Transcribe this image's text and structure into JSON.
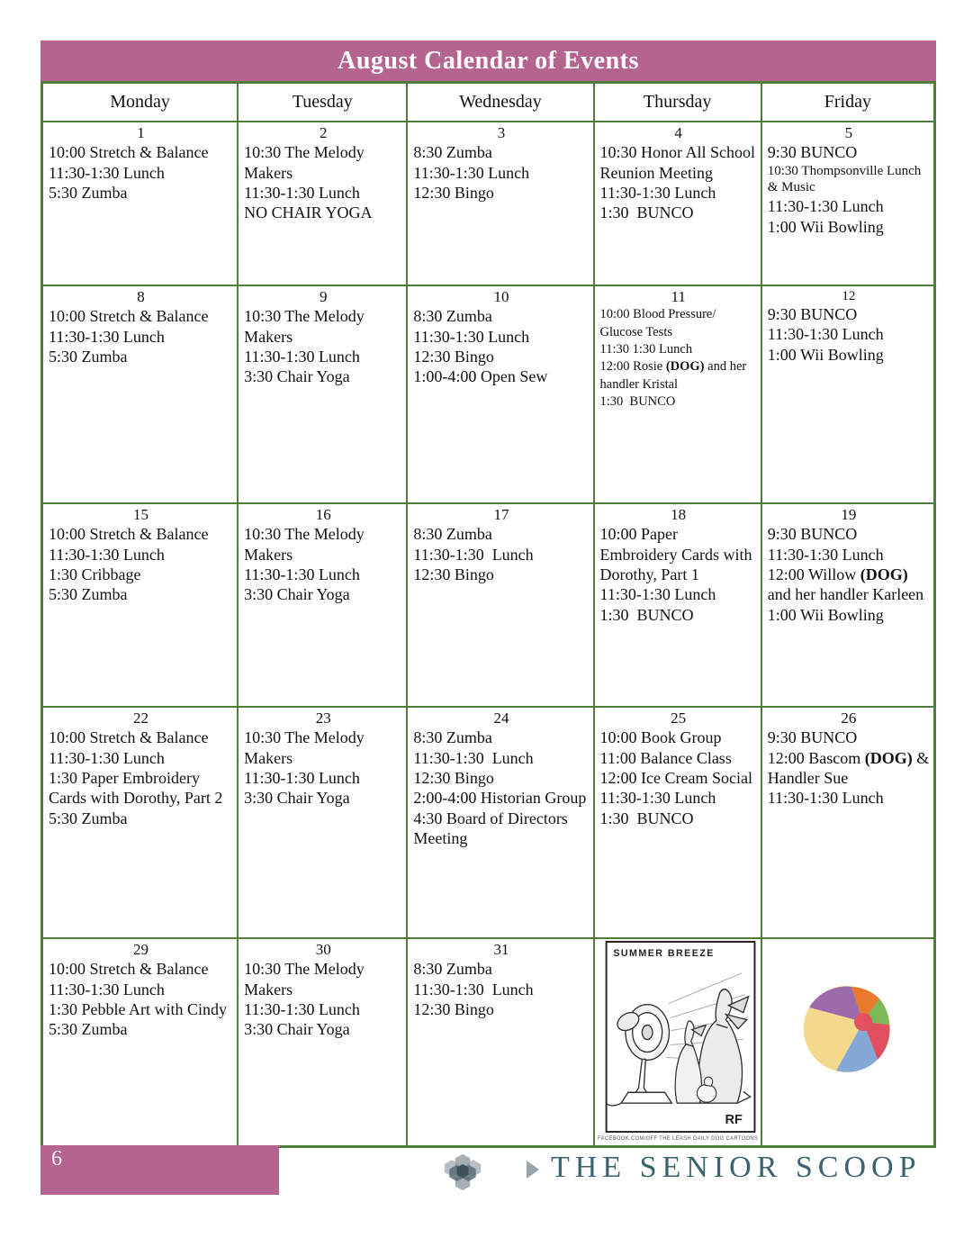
{
  "header": {
    "title": "August Calendar of Events"
  },
  "day_headers": [
    "Monday",
    "Tuesday",
    "Wednesday",
    "Thursday",
    "Friday"
  ],
  "weeks": [
    {
      "cells": [
        {
          "day": "1",
          "lines": [
            {
              "segs": [
                {
                  "t": "10:00 Stretch & Balance"
                }
              ]
            },
            {
              "segs": [
                {
                  "t": "11:30-1:30 Lunch"
                }
              ]
            },
            {
              "segs": [
                {
                  "t": "5:30 Zumba"
                }
              ]
            }
          ]
        },
        {
          "day": "2",
          "lines": [
            {
              "segs": [
                {
                  "t": "10:30 The Melody Makers"
                }
              ]
            },
            {
              "segs": [
                {
                  "t": "11:30-1:30 Lunch"
                }
              ]
            },
            {
              "segs": [
                {
                  "t": "NO CHAIR YOGA"
                }
              ]
            }
          ]
        },
        {
          "day": "3",
          "lines": [
            {
              "segs": [
                {
                  "t": "8:30 Zumba"
                }
              ]
            },
            {
              "segs": [
                {
                  "t": "11:30-1:30 Lunch"
                }
              ]
            },
            {
              "segs": [
                {
                  "t": "12:30 Bingo"
                }
              ]
            }
          ]
        },
        {
          "day": "4",
          "lines": [
            {
              "segs": [
                {
                  "t": "10:30 Honor All School Reunion Meeting"
                }
              ]
            },
            {
              "segs": [
                {
                  "t": "11:30-1:30 Lunch"
                }
              ]
            },
            {
              "segs": [
                {
                  "t": "1:30  BUNCO"
                }
              ]
            }
          ]
        },
        {
          "day": "5",
          "lines": [
            {
              "segs": [
                {
                  "t": "9:30 BUNCO"
                }
              ]
            },
            {
              "small": true,
              "segs": [
                {
                  "t": "10:30 Thompsonville Lunch & Music"
                }
              ]
            },
            {
              "segs": [
                {
                  "t": "11:30-1:30 Lunch"
                }
              ]
            },
            {
              "segs": [
                {
                  "t": "1:00 Wii Bowling"
                }
              ]
            }
          ]
        }
      ]
    },
    {
      "cells": [
        {
          "day": "8",
          "lines": [
            {
              "segs": [
                {
                  "t": "10:00 Stretch & Balance"
                }
              ]
            },
            {
              "segs": [
                {
                  "t": "11:30-1:30 Lunch"
                }
              ]
            },
            {
              "segs": [
                {
                  "t": "5:30 Zumba"
                }
              ]
            }
          ]
        },
        {
          "day": "9",
          "lines": [
            {
              "segs": [
                {
                  "t": "10:30 The Melody Makers"
                }
              ]
            },
            {
              "segs": [
                {
                  "t": "11:30-1:30 Lunch"
                }
              ]
            },
            {
              "segs": [
                {
                  "t": "3:30 Chair Yoga"
                }
              ]
            }
          ]
        },
        {
          "day": "10",
          "lines": [
            {
              "segs": [
                {
                  "t": "8:30 Zumba"
                }
              ]
            },
            {
              "segs": [
                {
                  "t": "11:30-1:30 Lunch"
                }
              ]
            },
            {
              "segs": [
                {
                  "t": "12:30 Bingo"
                }
              ]
            },
            {
              "segs": [
                {
                  "t": "1:00-4:00 Open Sew"
                }
              ]
            }
          ]
        },
        {
          "day": "11",
          "small_text": true,
          "lines": [
            {
              "segs": [
                {
                  "t": "10:00 Blood Pressure/"
                }
              ]
            },
            {
              "segs": [
                {
                  "t": "Glucose Tests"
                }
              ]
            },
            {
              "segs": [
                {
                  "t": "11:30 1:30 Lunch"
                }
              ]
            },
            {
              "segs": [
                {
                  "t": "12:00 Rosie "
                },
                {
                  "t": "(DOG)",
                  "b": true
                },
                {
                  "t": " and her handler Kristal"
                }
              ]
            },
            {
              "segs": [
                {
                  "t": "1:30  BUNCO"
                }
              ]
            }
          ]
        },
        {
          "day": "12",
          "day_small": true,
          "lines": [
            {
              "segs": [
                {
                  "t": "9:30 BUNCO"
                }
              ]
            },
            {
              "segs": [
                {
                  "t": "11:30-1:30 Lunch"
                }
              ]
            },
            {
              "segs": [
                {
                  "t": "1:00 Wii Bowling"
                }
              ]
            }
          ]
        }
      ]
    },
    {
      "cells": [
        {
          "day": "15",
          "lines": [
            {
              "segs": [
                {
                  "t": "10:00 Stretch & Balance"
                }
              ]
            },
            {
              "segs": [
                {
                  "t": "11:30-1:30 Lunch"
                }
              ]
            },
            {
              "segs": [
                {
                  "t": "1:30 Cribbage"
                }
              ]
            },
            {
              "segs": [
                {
                  "t": "5:30 Zumba"
                }
              ]
            }
          ]
        },
        {
          "day": "16",
          "lines": [
            {
              "segs": [
                {
                  "t": "10:30 The Melody Makers"
                }
              ]
            },
            {
              "segs": [
                {
                  "t": "11:30-1:30 Lunch"
                }
              ]
            },
            {
              "segs": [
                {
                  "t": "3:30 Chair Yoga"
                }
              ]
            }
          ]
        },
        {
          "day": "17",
          "lines": [
            {
              "segs": [
                {
                  "t": "8:30 Zumba"
                }
              ]
            },
            {
              "segs": [
                {
                  "t": "11:30-1:30  Lunch"
                }
              ]
            },
            {
              "segs": [
                {
                  "t": "12:30 Bingo"
                }
              ]
            }
          ]
        },
        {
          "day": "18",
          "lines": [
            {
              "segs": [
                {
                  "t": "10:00 Paper Embroidery Cards with Dorothy, Part 1"
                }
              ]
            },
            {
              "segs": [
                {
                  "t": "11:30-1:30 Lunch"
                }
              ]
            },
            {
              "segs": [
                {
                  "t": "1:30  BUNCO"
                }
              ]
            }
          ]
        },
        {
          "day": "19",
          "lines": [
            {
              "segs": [
                {
                  "t": "9:30 BUNCO"
                }
              ]
            },
            {
              "segs": [
                {
                  "t": "11:30-1:30 Lunch"
                }
              ]
            },
            {
              "segs": [
                {
                  "t": "12:00 Willow "
                },
                {
                  "t": "(DOG)",
                  "b": true
                },
                {
                  "t": " and her handler Karleen"
                }
              ]
            },
            {
              "segs": [
                {
                  "t": "1:00 Wii Bowling"
                }
              ]
            }
          ]
        }
      ]
    },
    {
      "cells": [
        {
          "day": "22",
          "lines": [
            {
              "segs": [
                {
                  "t": "10:00 Stretch & Balance"
                }
              ]
            },
            {
              "segs": [
                {
                  "t": "11:30-1:30 Lunch"
                }
              ]
            },
            {
              "segs": [
                {
                  "t": "1:30 Paper Embroidery Cards with Dorothy, Part 2"
                }
              ]
            },
            {
              "segs": [
                {
                  "t": "5:30 Zumba"
                }
              ]
            }
          ]
        },
        {
          "day": "23",
          "lines": [
            {
              "segs": [
                {
                  "t": "10:30 The Melody Makers"
                }
              ]
            },
            {
              "segs": [
                {
                  "t": "11:30-1:30 Lunch"
                }
              ]
            },
            {
              "segs": [
                {
                  "t": "3:30 Chair Yoga"
                }
              ]
            }
          ]
        },
        {
          "day": "24",
          "lines": [
            {
              "segs": [
                {
                  "t": "8:30 Zumba"
                }
              ]
            },
            {
              "segs": [
                {
                  "t": "11:30-1:30  Lunch"
                }
              ]
            },
            {
              "segs": [
                {
                  "t": "12:30 Bingo"
                }
              ]
            },
            {
              "segs": [
                {
                  "t": "2:00-4:00 Historian Group"
                }
              ]
            },
            {
              "segs": [
                {
                  "t": "4:30 Board of Directors Meeting"
                }
              ]
            }
          ]
        },
        {
          "day": "25",
          "lines": [
            {
              "segs": [
                {
                  "t": "10:00 Book Group"
                }
              ]
            },
            {
              "segs": [
                {
                  "t": "11:00 Balance Class"
                }
              ]
            },
            {
              "segs": [
                {
                  "t": "12:00 Ice Cream Social"
                }
              ]
            },
            {
              "segs": [
                {
                  "t": "11:30-1:30 Lunch"
                }
              ]
            },
            {
              "segs": [
                {
                  "t": "1:30  BUNCO"
                }
              ]
            }
          ]
        },
        {
          "day": "26",
          "lines": [
            {
              "segs": [
                {
                  "t": "9:30 BUNCO"
                }
              ]
            },
            {
              "segs": [
                {
                  "t": "12:00 Bascom "
                },
                {
                  "t": "(DOG)",
                  "b": true
                },
                {
                  "t": " & Handler Sue"
                }
              ]
            },
            {
              "segs": [
                {
                  "t": "11:30-1:30 Lunch"
                }
              ]
            }
          ]
        }
      ]
    },
    {
      "cells": [
        {
          "day": "29",
          "lines": [
            {
              "segs": [
                {
                  "t": "10:00 Stretch & Balance"
                }
              ]
            },
            {
              "segs": [
                {
                  "t": "11:30-1:30 Lunch"
                }
              ]
            },
            {
              "segs": [
                {
                  "t": "1:30 Pebble Art with Cindy"
                }
              ]
            },
            {
              "segs": [
                {
                  "t": "5:30 Zumba"
                }
              ]
            }
          ]
        },
        {
          "day": "30",
          "lines": [
            {
              "segs": [
                {
                  "t": "10:30 The Melody Makers"
                }
              ]
            },
            {
              "segs": [
                {
                  "t": "11:30-1:30 Lunch"
                }
              ]
            },
            {
              "segs": [
                {
                  "t": "3:30 Chair Yoga"
                }
              ]
            }
          ]
        },
        {
          "day": "31",
          "lines": [
            {
              "segs": [
                {
                  "t": "8:30 Zumba"
                }
              ]
            },
            {
              "segs": [
                {
                  "t": "11:30-1:30  Lunch"
                }
              ]
            },
            {
              "segs": [
                {
                  "t": "12:30 Bingo"
                }
              ]
            }
          ]
        },
        {
          "special": "cartoon"
        },
        {
          "special": "beachball"
        }
      ]
    }
  ],
  "cartoon": {
    "title": "SUMMER BREEZE",
    "signature": "RF",
    "caption": "FACEBOOK.COM/OFF THE LEASH DAILY DOG CARTOONS"
  },
  "footer": {
    "page_number": "6",
    "brand": "THE SENIOR SCOOP"
  },
  "colors": {
    "header_bg": "#b5638f",
    "grid_green": "#4e7e3a",
    "brand_teal": "#3a626f"
  }
}
